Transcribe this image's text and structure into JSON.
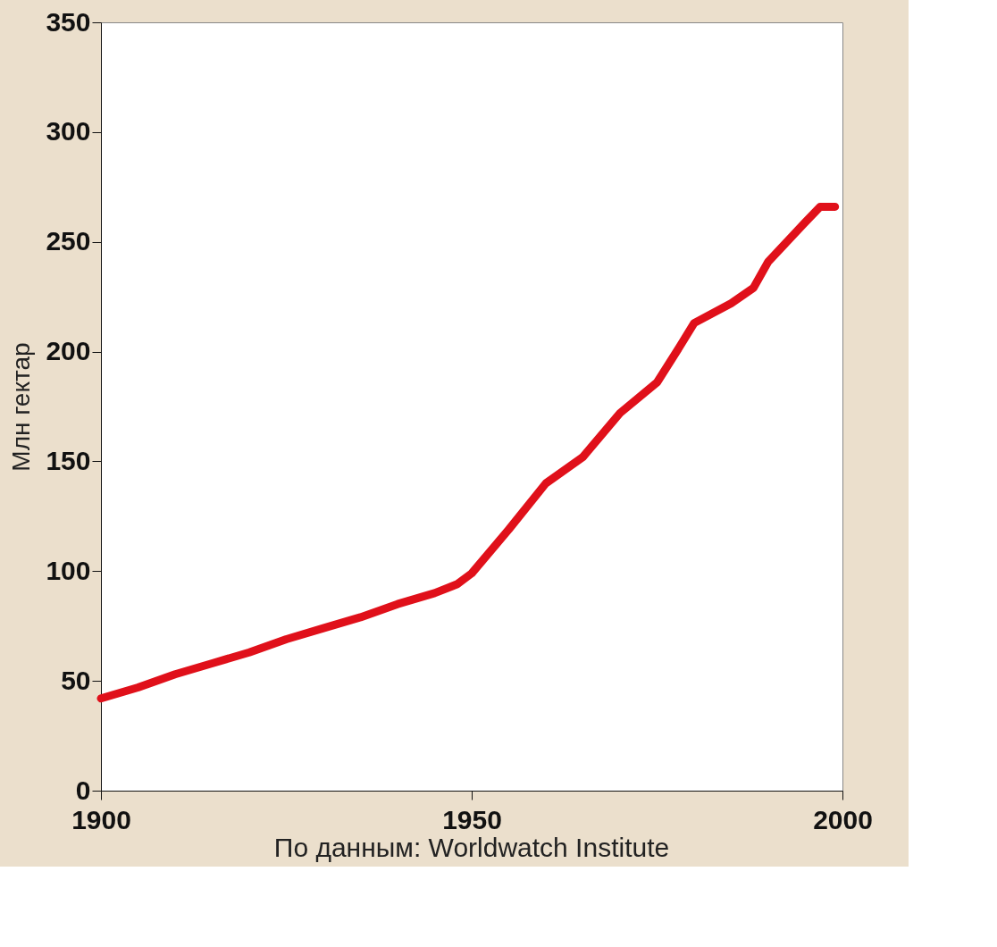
{
  "chart_data": {
    "type": "line",
    "ylabel": "Млн гектар",
    "annotations": [
      "По данным: Worldwatch Institute"
    ],
    "x": [
      1900,
      1905,
      1910,
      1915,
      1920,
      1925,
      1930,
      1935,
      1940,
      1945,
      1948,
      1950,
      1955,
      1960,
      1965,
      1970,
      1975,
      1978,
      1980,
      1985,
      1988,
      1990,
      1995,
      1997,
      1999
    ],
    "series": [
      {
        "color": "#e0101a",
        "values": [
          42,
          47,
          53,
          58,
          63,
          69,
          74,
          79,
          85,
          90,
          94,
          99,
          119,
          140,
          152,
          172,
          186,
          202,
          213,
          222,
          229,
          241,
          259,
          266,
          266
        ]
      }
    ],
    "xlim": [
      1900,
      2000
    ],
    "xticks": [
      1900,
      1950,
      2000
    ],
    "ylim": [
      0,
      350
    ],
    "yticks": [
      0,
      50,
      100,
      150,
      200,
      250,
      300,
      350
    ],
    "grid": false,
    "line_style": "solid"
  }
}
